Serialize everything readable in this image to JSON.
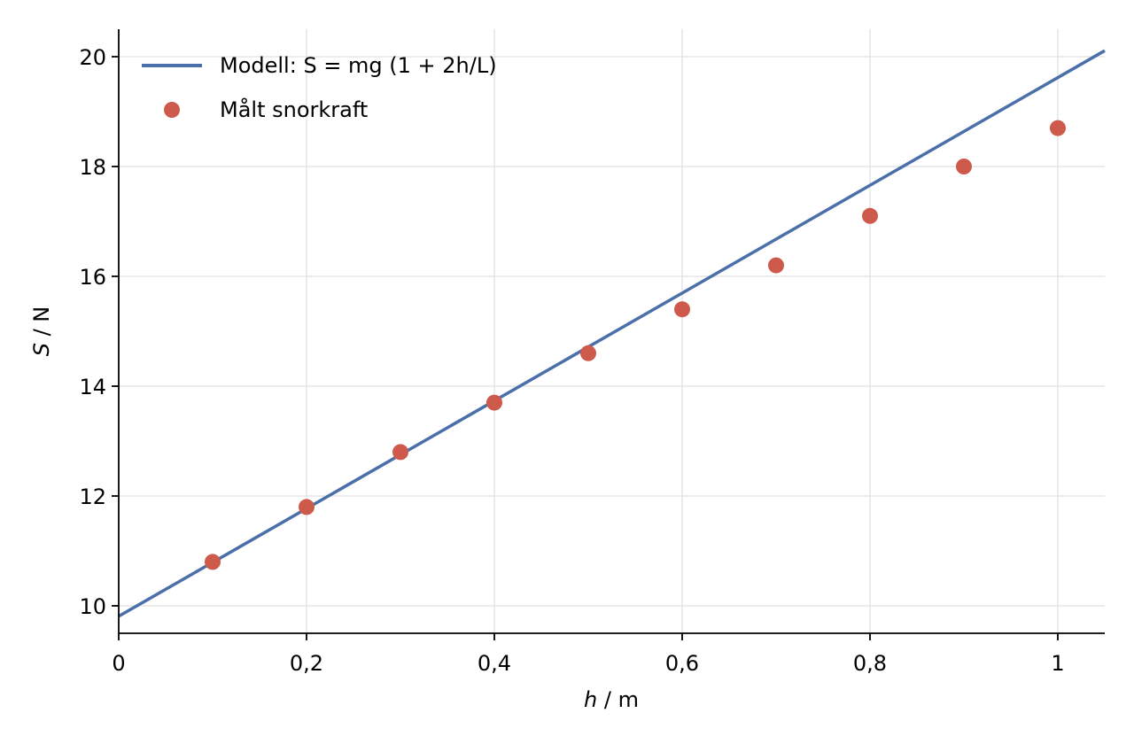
{
  "chart_data": {
    "type": "line",
    "title": "",
    "xlabel": {
      "var": "h",
      "unit": " / m"
    },
    "ylabel": {
      "var": "S",
      "unit": " / N"
    },
    "xlim": [
      0,
      1.05
    ],
    "ylim": [
      9.5,
      20.5
    ],
    "x_ticks": [
      0,
      0.2,
      0.4,
      0.6,
      0.8,
      1
    ],
    "x_tick_labels": [
      "0",
      "0,2",
      "0,4",
      "0,6",
      "0,8",
      "1"
    ],
    "y_ticks": [
      10,
      12,
      14,
      16,
      18,
      20
    ],
    "y_tick_labels": [
      "10",
      "12",
      "14",
      "16",
      "18",
      "20"
    ],
    "grid": true,
    "legend_position": "top-left",
    "series": [
      {
        "name": "Modell: S = mg (1 + 2h/L)",
        "kind": "line",
        "color": "#4a6fa9",
        "x": [
          0,
          1.05
        ],
        "y": [
          9.81,
          20.11
        ]
      },
      {
        "name": "Målt snorkraft",
        "kind": "scatter",
        "color": "#cd5a4b",
        "x": [
          0.1,
          0.2,
          0.3,
          0.4,
          0.5,
          0.6,
          0.7,
          0.8,
          0.9,
          1.0
        ],
        "y": [
          10.8,
          11.8,
          12.8,
          13.7,
          14.6,
          15.4,
          16.2,
          17.1,
          18.0,
          18.7
        ]
      }
    ]
  }
}
